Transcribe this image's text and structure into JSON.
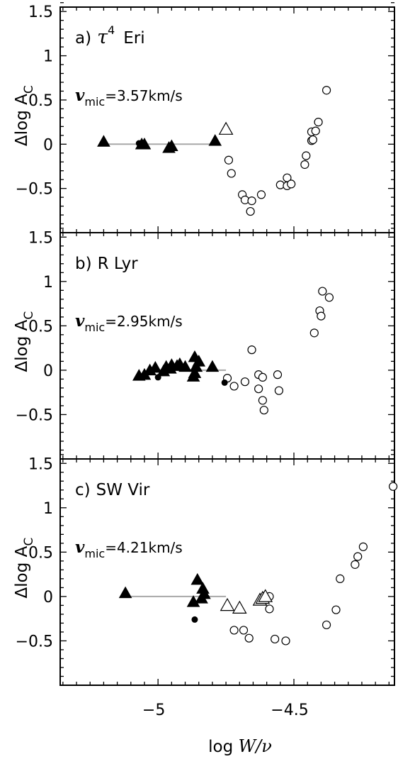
{
  "chart_data": [
    {
      "type": "scatter",
      "panel": "a",
      "title": "a) τ⁴ Eri",
      "title_parts": {
        "prefix": "a)",
        "symbol": "τ",
        "superscript": "4",
        "name": "Eri"
      },
      "annotation": {
        "var": "v",
        "sub": "mic",
        "value": "=3.57km/s"
      },
      "ylabel": "Δlog A",
      "ylabel_sub": "C",
      "xlim": [
        -5.36,
        -4.13
      ],
      "ylim": [
        -1.0,
        1.55
      ],
      "yticks": [
        -1.0,
        -0.5,
        0,
        0.5,
        1.0,
        1.5
      ],
      "ytick_labels": [
        "",
        "−0.5",
        "0",
        "0.5",
        "1",
        "1.5"
      ],
      "reference_line": {
        "x": [
          -5.2,
          -4.78
        ],
        "y": 0,
        "color": "#a8a8a8"
      },
      "filled_triangles": [
        [
          -5.2,
          0.03
        ],
        [
          -5.06,
          0.0
        ],
        [
          -5.05,
          0.0
        ],
        [
          -4.96,
          -0.04
        ],
        [
          -4.95,
          -0.02
        ],
        [
          -4.79,
          0.04
        ]
      ],
      "filled_circles": [
        [
          -5.07,
          0.01
        ]
      ],
      "open_triangles": [
        [
          -4.75,
          0.17
        ]
      ],
      "open_circles": [
        [
          -4.74,
          -0.18
        ],
        [
          -4.73,
          -0.33
        ],
        [
          -4.69,
          -0.57
        ],
        [
          -4.68,
          -0.63
        ],
        [
          -4.66,
          -0.76
        ],
        [
          -4.655,
          -0.64
        ],
        [
          -4.62,
          -0.57
        ],
        [
          -4.55,
          -0.46
        ],
        [
          -4.525,
          -0.38
        ],
        [
          -4.525,
          -0.47
        ],
        [
          -4.51,
          -0.45
        ],
        [
          -4.46,
          -0.23
        ],
        [
          -4.455,
          -0.13
        ],
        [
          -4.435,
          0.14
        ],
        [
          -4.435,
          0.04
        ],
        [
          -4.43,
          0.05
        ],
        [
          -4.42,
          0.15
        ],
        [
          -4.41,
          0.25
        ],
        [
          -4.38,
          0.61
        ]
      ]
    },
    {
      "type": "scatter",
      "panel": "b",
      "title": "b) R Lyr",
      "title_parts": {
        "prefix": "b)",
        "name": "R Lyr"
      },
      "annotation": {
        "var": "v",
        "sub": "mic",
        "value": "=2.95km/s"
      },
      "ylabel": "Δlog A",
      "ylabel_sub": "C",
      "xlim": [
        -5.36,
        -4.13
      ],
      "ylim": [
        -1.0,
        1.55
      ],
      "yticks": [
        -1.0,
        -0.5,
        0,
        0.5,
        1.0,
        1.5
      ],
      "ytick_labels": [
        "",
        "−0.5",
        "0",
        "0.5",
        "1",
        "1.5"
      ],
      "reference_line": {
        "x": [
          -5.03,
          -4.75
        ],
        "y": 0,
        "color": "#a8a8a8"
      },
      "filled_triangles": [
        [
          -5.07,
          -0.06
        ],
        [
          -5.05,
          -0.05
        ],
        [
          -5.03,
          0.0
        ],
        [
          -5.01,
          0.03
        ],
        [
          -4.98,
          -0.01
        ],
        [
          -4.97,
          0.04
        ],
        [
          -4.955,
          0.02
        ],
        [
          -4.95,
          0.06
        ],
        [
          -4.93,
          0.05
        ],
        [
          -4.92,
          0.07
        ],
        [
          -4.9,
          0.04
        ],
        [
          -4.87,
          -0.07
        ],
        [
          -4.865,
          -0.03
        ],
        [
          -4.865,
          0.15
        ],
        [
          -4.86,
          0.04
        ],
        [
          -4.85,
          0.1
        ],
        [
          -4.8,
          0.04
        ]
      ],
      "filled_circles": [
        [
          -5.0,
          -0.08
        ],
        [
          -4.755,
          -0.14
        ]
      ],
      "open_triangles": [],
      "open_circles": [
        [
          -4.745,
          -0.09
        ],
        [
          -4.72,
          -0.18
        ],
        [
          -4.68,
          -0.13
        ],
        [
          -4.655,
          0.23
        ],
        [
          -4.63,
          -0.05
        ],
        [
          -4.63,
          -0.21
        ],
        [
          -4.615,
          -0.34
        ],
        [
          -4.61,
          -0.45
        ],
        [
          -4.615,
          -0.08
        ],
        [
          -4.56,
          -0.05
        ],
        [
          -4.555,
          -0.23
        ],
        [
          -4.425,
          0.42
        ],
        [
          -4.405,
          0.67
        ],
        [
          -4.4,
          0.61
        ],
        [
          -4.395,
          0.89
        ],
        [
          -4.37,
          0.82
        ]
      ]
    },
    {
      "type": "scatter",
      "panel": "c",
      "title": "c) SW Vir",
      "title_parts": {
        "prefix": "c)",
        "name": "SW Vir"
      },
      "annotation": {
        "var": "v",
        "sub": "mic",
        "value": "=4.21km/s"
      },
      "ylabel": "Δlog A",
      "ylabel_sub": "C",
      "xlim": [
        -5.36,
        -4.13
      ],
      "ylim": [
        -1.0,
        1.55
      ],
      "yticks": [
        -1.0,
        -0.5,
        0,
        0.5,
        1.0,
        1.5
      ],
      "ytick_labels": [
        "",
        "−0.5",
        "0",
        "0.5",
        "1",
        "1.5"
      ],
      "reference_line": {
        "x": [
          -5.11,
          -4.75
        ],
        "y": 0,
        "color": "#a8a8a8"
      },
      "filled_triangles": [
        [
          -5.12,
          0.04
        ],
        [
          -4.87,
          -0.06
        ],
        [
          -4.855,
          0.19
        ],
        [
          -4.84,
          -0.02
        ],
        [
          -4.835,
          0.09
        ],
        [
          -4.83,
          0.03
        ]
      ],
      "filled_circles": [
        [
          -4.865,
          -0.26
        ]
      ],
      "open_triangles": [
        [
          -4.745,
          -0.1
        ],
        [
          -4.7,
          -0.13
        ],
        [
          -4.625,
          -0.04
        ],
        [
          -4.615,
          -0.02
        ],
        [
          -4.605,
          0.0
        ]
      ],
      "open_circles": [
        [
          -4.72,
          -0.38
        ],
        [
          -4.685,
          -0.38
        ],
        [
          -4.665,
          -0.47
        ],
        [
          -4.59,
          0.0
        ],
        [
          -4.59,
          -0.14
        ],
        [
          -4.57,
          -0.48
        ],
        [
          -4.53,
          -0.5
        ],
        [
          -4.38,
          -0.32
        ],
        [
          -4.345,
          -0.15
        ],
        [
          -4.33,
          0.2
        ],
        [
          -4.275,
          0.36
        ],
        [
          -4.265,
          0.45
        ],
        [
          -4.245,
          0.56
        ],
        [
          -4.135,
          1.24
        ]
      ]
    }
  ],
  "xaxis": {
    "label": "log W/ν",
    "label_parts": {
      "prefix": "log ",
      "var": "W/ν"
    },
    "ticks": [
      -5.0,
      -4.5
    ],
    "tick_labels": [
      "−5",
      "−4.5"
    ],
    "minor_step": 0.05
  },
  "colors": {
    "marker": "#000000",
    "frame": "#000000",
    "reference_line": "#a8a8a8",
    "background": "#ffffff"
  }
}
